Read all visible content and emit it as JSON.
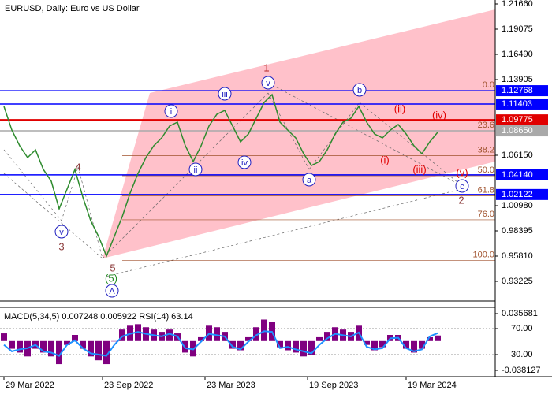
{
  "chart_data": {
    "type": "line",
    "title": "EURUSD, Daily:  Euro vs US Dollar",
    "xlim": [
      -0.5,
      62.3
    ],
    "xticks": [
      {
        "value": 0,
        "label": "29 Mar 2022"
      },
      {
        "value": 12.5,
        "label": "23 Sep 2022"
      },
      {
        "value": 25.5,
        "label": "23 Mar 2023"
      },
      {
        "value": 38.5,
        "label": "19 Sep 2023"
      },
      {
        "value": 51,
        "label": "19 Mar 2024"
      }
    ],
    "ylim": [
      0.91205,
      1.22064
    ],
    "yticks": [
      {
        "value": 1.2166,
        "label": "1.21660"
      },
      {
        "value": 1.19075,
        "label": "1.19075"
      },
      {
        "value": 1.1649,
        "label": "1.16490"
      },
      {
        "value": 1.13905,
        "label": "1.13905"
      },
      {
        "value": 1.0615,
        "label": "1.06150"
      },
      {
        "value": 1.0098,
        "label": "1.00980"
      },
      {
        "value": 0.98395,
        "label": "0.98395"
      },
      {
        "value": 0.9581,
        "label": "0.95810"
      },
      {
        "value": 0.93225,
        "label": "0.93225"
      }
    ],
    "series": [
      {
        "name": "EURUSD",
        "color": "#2e8b2e",
        "values": [
          1.1116,
          1.0873,
          1.0712,
          1.0591,
          1.0671,
          1.0469,
          1.0348,
          1.0066,
          1.0267,
          1.0469,
          1.0187,
          0.9944,
          0.9783,
          0.9581,
          0.9783,
          0.9985,
          1.0227,
          1.0429,
          1.0591,
          1.0712,
          1.0793,
          1.0914,
          1.0954,
          1.0712,
          1.055,
          1.0712,
          1.0914,
          1.1035,
          1.1075,
          1.0914,
          1.0752,
          1.0833,
          1.0995,
          1.1156,
          1.1237,
          1.0954,
          1.0873,
          1.0793,
          1.0631,
          1.051,
          1.055,
          1.0671,
          1.0833,
          1.0954,
          1.0995,
          1.1116,
          1.0954,
          1.0833,
          1.0793,
          1.0873,
          1.093,
          1.0833,
          1.0712,
          1.0631,
          1.0752,
          1.085
        ]
      }
    ],
    "levels": [
      {
        "value": 1.12768,
        "label": "1.12768",
        "color": "#0000ff"
      },
      {
        "value": 1.11403,
        "label": "1.11403",
        "color": "#0000ff"
      },
      {
        "value": 1.09775,
        "label": "1.09775",
        "color": "#e00000"
      },
      {
        "value": 1.0865,
        "label": "1.08650",
        "color": "#a9a9a9"
      },
      {
        "value": 1.0414,
        "label": "1.04140",
        "color": "#0000ff"
      },
      {
        "value": 1.02122,
        "label": "1.02122",
        "color": "#0000ff"
      }
    ],
    "fibonacci": [
      {
        "value": 1.1275,
        "label": "0.0"
      },
      {
        "value": 1.0864,
        "label": "23.6"
      },
      {
        "value": 1.061,
        "label": "38.2"
      },
      {
        "value": 1.0405,
        "label": "50.0"
      },
      {
        "value": 1.02,
        "label": "61.8"
      },
      {
        "value": 0.9953,
        "label": "76.0"
      },
      {
        "value": 0.9535,
        "label": "100.0"
      }
    ],
    "wave_labels": [
      "1",
      "i",
      "iii",
      "v",
      "ii",
      "iv",
      "a",
      "b",
      "c",
      "v",
      "A",
      "(i)",
      "(ii)",
      "(iii)",
      "(iv)",
      "(v)",
      "4",
      "3",
      "5",
      "2",
      "(5)"
    ],
    "indicator": {
      "label": "MACD(5,34,5) 0.007248 0.005922 RSI(14) 63.14",
      "macd_lim": [
        -0.038127,
        0.035681
      ],
      "macd_ticks": [
        {
          "value": 0.035681,
          "label": "0.035681"
        },
        {
          "value": -0.038127,
          "label": "-0.038127"
        }
      ],
      "rsi_lim": [
        0,
        100
      ],
      "rsi_ticks": [
        {
          "value": 70,
          "label": "70.00"
        },
        {
          "value": 30,
          "label": "30.00"
        }
      ],
      "macd_color": "#800080",
      "rsi_color": "#1e90ff",
      "macd": [
        0.01,
        -0.01,
        -0.015,
        -0.02,
        -0.01,
        -0.015,
        -0.02,
        -0.03,
        -0.005,
        0.008,
        -0.01,
        -0.02,
        -0.025,
        -0.03,
        0.0,
        0.015,
        0.02,
        0.022,
        0.018,
        0.015,
        0.012,
        0.015,
        0.01,
        -0.015,
        -0.02,
        0.005,
        0.02,
        0.018,
        0.012,
        -0.01,
        -0.012,
        0.005,
        0.018,
        0.028,
        0.025,
        -0.008,
        -0.012,
        -0.015,
        -0.02,
        -0.018,
        0.005,
        0.012,
        0.018,
        0.015,
        0.012,
        0.02,
        -0.005,
        -0.012,
        -0.008,
        0.008,
        0.008,
        -0.01,
        -0.015,
        -0.01,
        0.005,
        0.007248
      ],
      "rsi": [
        45,
        35,
        38,
        40,
        45,
        35,
        33,
        28,
        45,
        52,
        40,
        32,
        30,
        28,
        45,
        58,
        62,
        65,
        62,
        60,
        58,
        62,
        58,
        40,
        38,
        50,
        62,
        60,
        58,
        42,
        38,
        50,
        60,
        66,
        65,
        40,
        42,
        38,
        35,
        32,
        45,
        55,
        62,
        60,
        58,
        64,
        42,
        38,
        40,
        55,
        56,
        40,
        35,
        38,
        58,
        63.14
      ]
    }
  }
}
